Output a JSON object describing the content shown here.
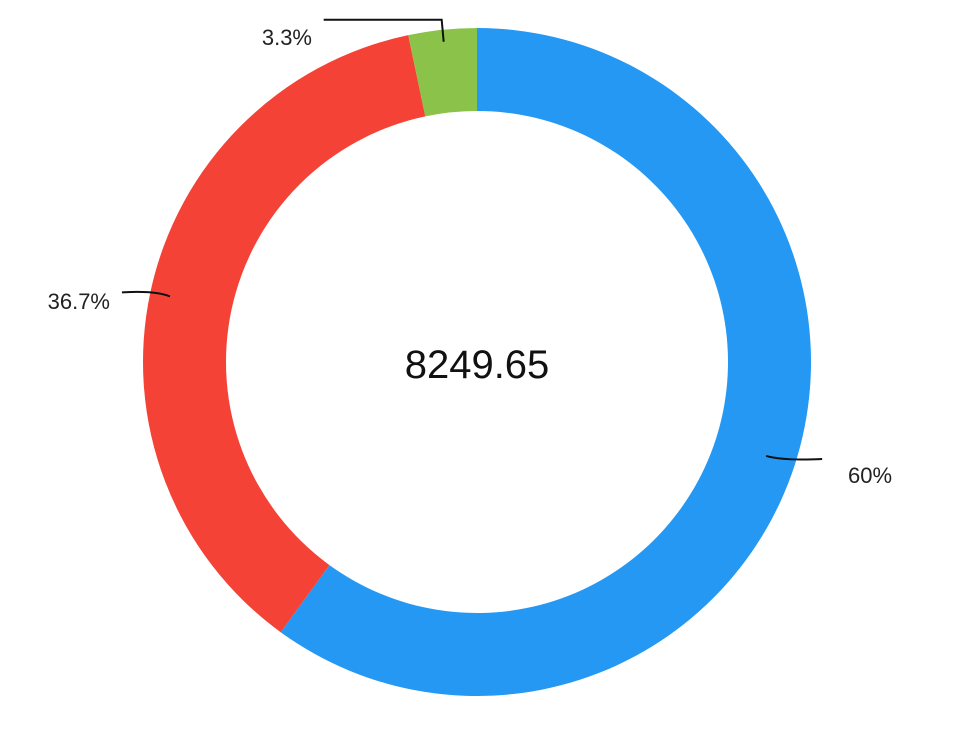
{
  "chart_data": {
    "type": "pie",
    "style": "donut",
    "center_label": "8249.65",
    "slices": [
      {
        "value_label": "60%",
        "value": 60,
        "color": "#2498f3"
      },
      {
        "value_label": "36.7%",
        "value": 36.7,
        "color": "#f44336"
      },
      {
        "value_label": "3.3%",
        "value": 3.3,
        "color": "#8bc34a"
      }
    ],
    "start_angle": "top",
    "direction": "clockwise",
    "legend": "none"
  }
}
